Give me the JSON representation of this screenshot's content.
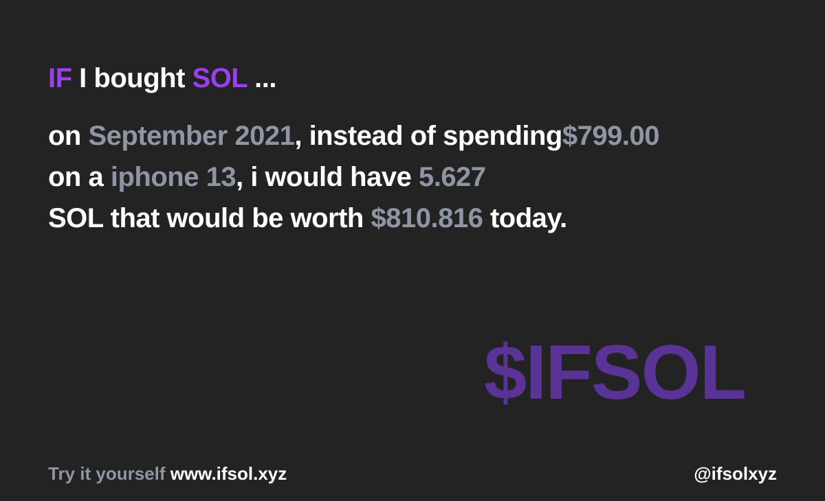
{
  "colors": {
    "background": "#232323",
    "accent_purple": "#9b3ff0",
    "muted_gray": "#8f96a3",
    "brand_purple": "#5a3396",
    "text_white": "#ffffff"
  },
  "headline": {
    "if": "IF",
    "i_bought": "I bought",
    "coin": "SOL",
    "ellipsis": "..."
  },
  "statement": {
    "on": "on",
    "date": "September 2021",
    "instead_of_spending": ", instead of spending",
    "amount_spent": "$799.00",
    "on_a": "on a",
    "product": "iphone 13",
    "i_would_have": ", i would have",
    "coin_amount": "5.627",
    "sol_worth": "SOL that would be worth",
    "current_value": "$810.816",
    "today": "today."
  },
  "brand": {
    "mark": "$IFSOL"
  },
  "footer": {
    "try_it": "Try it yourself",
    "website": "www.ifsol.xyz",
    "handle": "@ifsolxyz"
  }
}
